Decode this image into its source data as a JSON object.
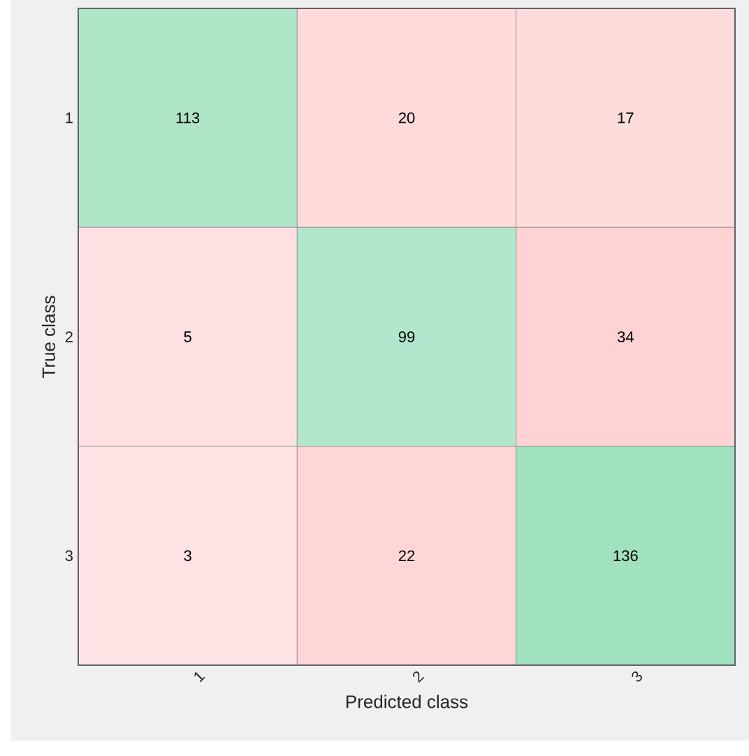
{
  "chart_data": {
    "type": "heatmap",
    "xlabel": "Predicted class",
    "ylabel": "True class",
    "categories": [
      "1",
      "2",
      "3"
    ],
    "y_categories": [
      "1",
      "2",
      "3"
    ],
    "data_labels": true,
    "cells": [
      [
        113,
        20,
        17
      ],
      [
        5,
        99,
        34
      ],
      [
        3,
        22,
        136
      ]
    ],
    "colors": [
      [
        "#ade5c6",
        "#ffdbdb",
        "#ffdcdc"
      ],
      [
        "#ffe0e2",
        "#b3e7cd",
        "#ffd2d4"
      ],
      [
        "#ffe2e4",
        "#ffd6d7",
        "#a0e1bf"
      ]
    ]
  }
}
